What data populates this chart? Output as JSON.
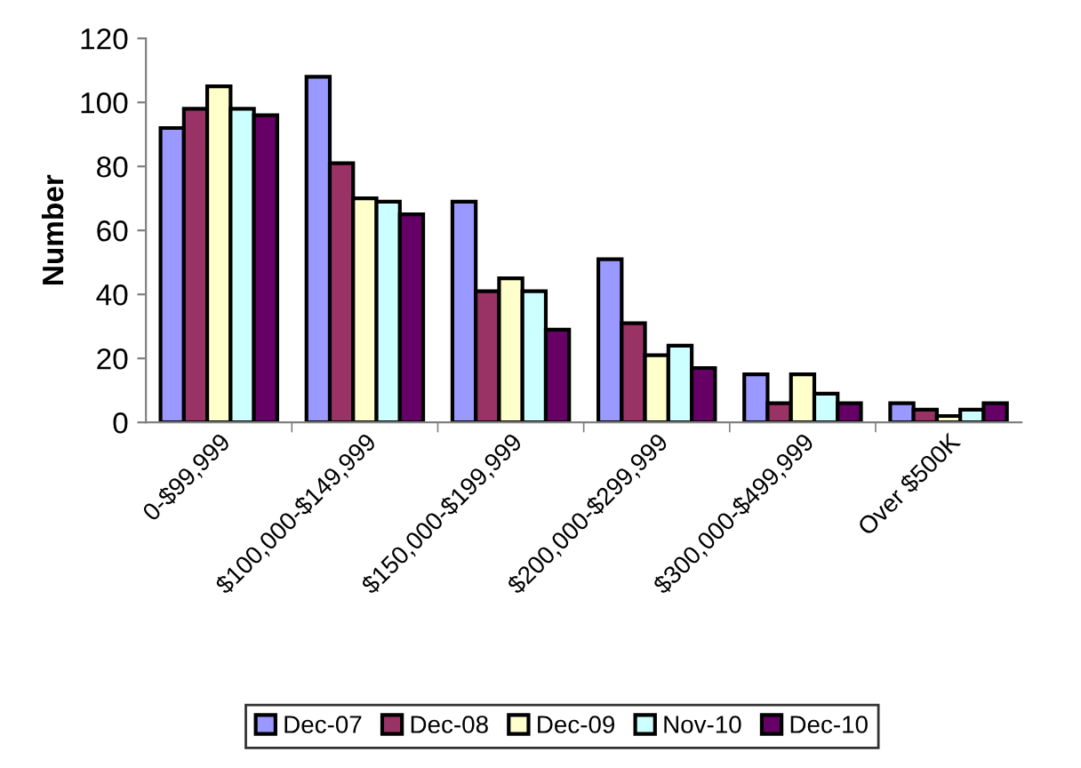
{
  "chart_data": {
    "type": "bar",
    "ylabel": "Number",
    "categories": [
      "0-$99,999",
      "$100,000-$149,999",
      "$150,000-$199,999",
      "$200,000-$299,999",
      "$300,000-$499,999",
      "Over $500K"
    ],
    "series": [
      {
        "name": "Dec-07",
        "color": "#9999ff",
        "values": [
          92,
          108,
          69,
          51,
          15,
          6
        ]
      },
      {
        "name": "Dec-08",
        "color": "#993366",
        "values": [
          98,
          81,
          41,
          31,
          6,
          4
        ]
      },
      {
        "name": "Dec-09",
        "color": "#ffffcc",
        "values": [
          105,
          70,
          45,
          21,
          15,
          2
        ]
      },
      {
        "name": "Nov-10",
        "color": "#ccffff",
        "values": [
          98,
          69,
          41,
          24,
          9,
          4
        ]
      },
      {
        "name": "Dec-10",
        "color": "#660066",
        "values": [
          96,
          65,
          29,
          17,
          6,
          6
        ]
      }
    ],
    "ylim": [
      0,
      120
    ],
    "yticks": [
      0,
      20,
      40,
      60,
      80,
      100,
      120
    ],
    "grid": false,
    "legend": "bottom"
  }
}
